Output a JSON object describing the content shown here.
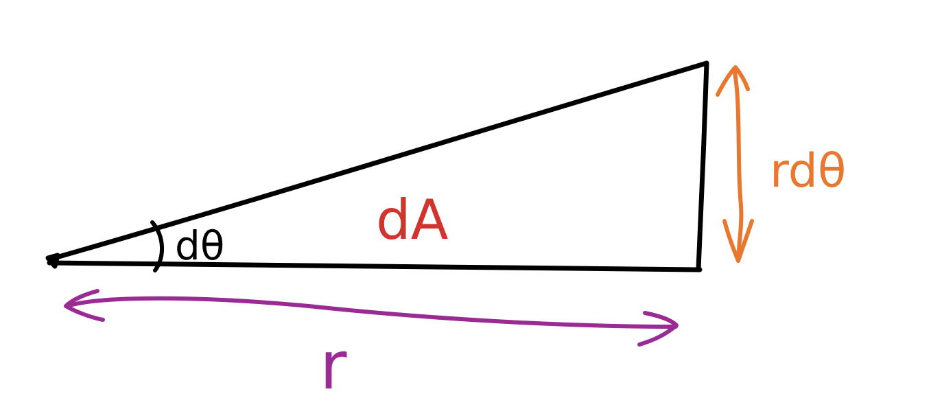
{
  "diagram": {
    "labels": {
      "angle": "dθ",
      "area": "dA",
      "arc": "rdθ",
      "radius": "r"
    },
    "colors": {
      "triangle": "#000000",
      "area_label": "#d0342c",
      "arc_label": "#e87830",
      "radius_label": "#9b2b94",
      "background": "#ffffff"
    }
  }
}
